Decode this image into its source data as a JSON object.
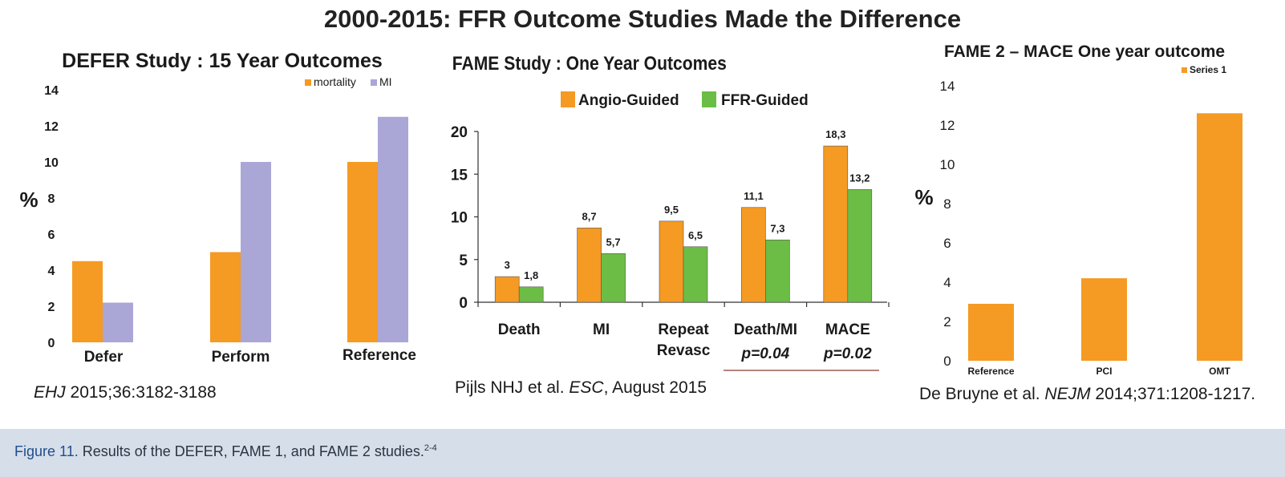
{
  "main_title": "2000-2015: FFR Outcome Studies Made the Difference",
  "colors": {
    "orange": "#f59a23",
    "lavender": "#aaa6d6",
    "green": "#6cbd45",
    "axis": "#333333",
    "caption_bg": "#d6dee9",
    "caption_label": "#1f4e8c"
  },
  "chart_data": [
    {
      "type": "bar",
      "title": "DEFER Study : 15 Year Outcomes",
      "ylabel": "%",
      "ylim": [
        0,
        14
      ],
      "yticks": [
        "0",
        "2",
        "4",
        "6",
        "8",
        "10",
        "12",
        "14"
      ],
      "categories": [
        "Defer",
        "Perform",
        "Reference"
      ],
      "legend_position": "top-right",
      "series": [
        {
          "name": "mortality",
          "color": "#f59a23",
          "values": [
            4.5,
            5.0,
            10.0
          ]
        },
        {
          "name": "MI",
          "color": "#aaa6d6",
          "values": [
            2.2,
            10.0,
            12.5
          ]
        }
      ]
    },
    {
      "type": "bar",
      "title": "FAME Study : One Year Outcomes",
      "ylim": [
        0,
        20
      ],
      "yticks": [
        "0",
        "5",
        "10",
        "15",
        "20"
      ],
      "categories": [
        [
          "Death"
        ],
        [
          "MI"
        ],
        [
          "Repeat",
          "Revasc"
        ],
        [
          "Death/MI"
        ],
        [
          "MACE"
        ]
      ],
      "pvalues": [
        "",
        "",
        "",
        "p=0.04",
        "p=0.02"
      ],
      "legend_position": "top",
      "series": [
        {
          "name": "Angio-Guided",
          "color": "#f59a23",
          "values": [
            3,
            8.7,
            9.5,
            11.1,
            18.3
          ],
          "labels": [
            "3",
            "8,7",
            "9,5",
            "11,1",
            "18,3"
          ]
        },
        {
          "name": "FFR-Guided",
          "color": "#6cbd45",
          "values": [
            1.8,
            5.7,
            6.5,
            7.3,
            13.2
          ],
          "labels": [
            "1,8",
            "5,7",
            "6,5",
            "7,3",
            "13,2"
          ]
        }
      ]
    },
    {
      "type": "bar",
      "title": "FAME 2 – MACE One year outcome",
      "ylabel": "%",
      "ylim": [
        0,
        14
      ],
      "yticks": [
        "0",
        "2",
        "4",
        "6",
        "8",
        "10",
        "12",
        "14"
      ],
      "categories": [
        "Reference",
        "PCI",
        "OMT"
      ],
      "legend_position": "top-right",
      "series": [
        {
          "name": "Series 1",
          "color": "#f59a23",
          "values": [
            2.9,
            4.2,
            12.6
          ]
        }
      ]
    }
  ],
  "references": {
    "defer": {
      "journal": "EHJ",
      "rest": " 2015;36:3182-3188"
    },
    "fame": {
      "pre": "Pijls NHJ et al. ",
      "journal": "ESC",
      "rest": ", August 2015"
    },
    "fame2": {
      "pre": "De Bruyne et al. ",
      "journal": "NEJM",
      "rest": " 2014;371:1208-1217."
    }
  },
  "caption": {
    "label": "Figure 11.",
    "text": " Results of the DEFER, FAME 1, and FAME 2 studies.",
    "sup": "2-4"
  }
}
